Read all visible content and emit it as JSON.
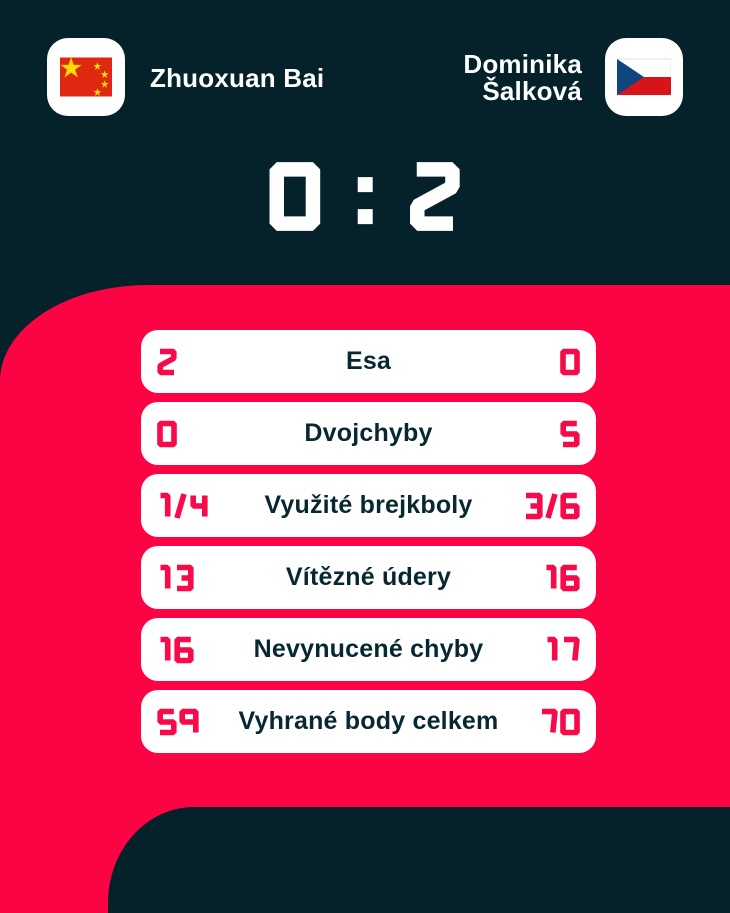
{
  "theme": {
    "navy": "#05222b",
    "pink": "#fc0343",
    "digit": "#f7094a",
    "label": "#072831",
    "card": "#ffffff",
    "china_red": "#de2910",
    "china_star_yellow": "#ffde00",
    "czech_blue": "#11457e",
    "czech_red": "#d7141a"
  },
  "header": {
    "home": {
      "name": "Zhuoxuan Bai",
      "flag": "china-flag"
    },
    "away": {
      "name": "Dominika Šalková",
      "flag": "czech-republic-flag"
    }
  },
  "score": {
    "home": "0",
    "separator": ":",
    "away": "2"
  },
  "stats": {
    "rows": [
      {
        "home": "2",
        "label": "Esa",
        "away": "0"
      },
      {
        "home": "0",
        "label": "Dvojchyby",
        "away": "5"
      },
      {
        "home": "1/4",
        "label": "Využité brejkboly",
        "away": "3/6"
      },
      {
        "home": "13",
        "label": "Vítězné údery",
        "away": "16"
      },
      {
        "home": "16",
        "label": "Nevynucené chyby",
        "away": "17"
      },
      {
        "home": "59",
        "label": "Vyhrané body celkem",
        "away": "70"
      }
    ]
  }
}
